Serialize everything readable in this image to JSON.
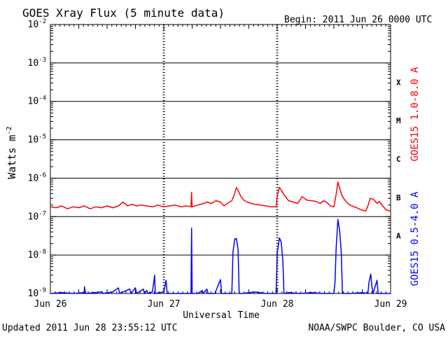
{
  "title": "GOES Xray Flux (5 minute data)",
  "begin": "Begin:  2011 Jun 26 0000 UTC",
  "ylabel": "Watts m",
  "ylabel_exp": "-2",
  "xlabel": "Universal Time",
  "updated": "Updated 2011 Jun 28 23:55:12 UTC",
  "credit": "NOAA/SWPC Boulder, CO USA",
  "chart_data": {
    "type": "line",
    "title": "GOES Xray Flux (5 minute data)",
    "xlabel": "Universal Time",
    "ylabel": "Watts m-2",
    "yscale": "log",
    "ylim_exp": [
      -9,
      -2
    ],
    "ytick_exps": [
      -9,
      -8,
      -7,
      -6,
      -5,
      -4,
      -3,
      -2
    ],
    "xlim_days": [
      0,
      3
    ],
    "xticks": [
      {
        "day": 0,
        "label": "Jun 26"
      },
      {
        "day": 1,
        "label": "Jun 27"
      },
      {
        "day": 2,
        "label": "Jun 28"
      },
      {
        "day": 3,
        "label": "Jun 29"
      }
    ],
    "flare_classes": [
      {
        "label": "A",
        "exp": -8
      },
      {
        "label": "B",
        "exp": -7
      },
      {
        "label": "C",
        "exp": -6
      },
      {
        "label": "M",
        "exp": -5
      },
      {
        "label": "X",
        "exp": -4
      }
    ],
    "grid": true,
    "series": [
      {
        "name": "GOES15 1.0-8.0 A",
        "color": "#ff0000",
        "points": [
          [
            0.0,
            1.8e-07
          ],
          [
            0.05,
            1.7e-07
          ],
          [
            0.1,
            1.9e-07
          ],
          [
            0.15,
            1.6e-07
          ],
          [
            0.2,
            1.8e-07
          ],
          [
            0.25,
            1.7e-07
          ],
          [
            0.3,
            1.9e-07
          ],
          [
            0.35,
            1.6e-07
          ],
          [
            0.4,
            1.8e-07
          ],
          [
            0.45,
            1.7e-07
          ],
          [
            0.5,
            1.9e-07
          ],
          [
            0.55,
            1.7e-07
          ],
          [
            0.6,
            1.9e-07
          ],
          [
            0.64,
            2.4e-07
          ],
          [
            0.68,
            1.9e-07
          ],
          [
            0.72,
            2.1e-07
          ],
          [
            0.76,
            1.9e-07
          ],
          [
            0.8,
            2e-07
          ],
          [
            0.85,
            1.9e-07
          ],
          [
            0.9,
            1.8e-07
          ],
          [
            0.95,
            2e-07
          ],
          [
            1.0,
            1.8e-07
          ],
          [
            1.05,
            1.9e-07
          ],
          [
            1.1,
            2e-07
          ],
          [
            1.15,
            1.8e-07
          ],
          [
            1.2,
            1.9e-07
          ],
          [
            1.24,
            1.8e-07
          ],
          [
            1.245,
            4.3e-07
          ],
          [
            1.25,
            1.8e-07
          ],
          [
            1.3,
            2e-07
          ],
          [
            1.35,
            2.2e-07
          ],
          [
            1.38,
            2.4e-07
          ],
          [
            1.42,
            2.2e-07
          ],
          [
            1.46,
            2.6e-07
          ],
          [
            1.5,
            2.4e-07
          ],
          [
            1.53,
            1.9e-07
          ],
          [
            1.57,
            2.3e-07
          ],
          [
            1.6,
            2.6e-07
          ],
          [
            1.62,
            3.6e-07
          ],
          [
            1.64,
            5.7e-07
          ],
          [
            1.66,
            4.5e-07
          ],
          [
            1.68,
            3.3e-07
          ],
          [
            1.71,
            2.6e-07
          ],
          [
            1.75,
            2.3e-07
          ],
          [
            1.8,
            2.1e-07
          ],
          [
            1.85,
            2e-07
          ],
          [
            1.9,
            1.9e-07
          ],
          [
            1.95,
            1.8e-07
          ],
          [
            1.99,
            1.8e-07
          ],
          [
            2.0,
            3.4e-07
          ],
          [
            2.02,
            5.8e-07
          ],
          [
            2.04,
            4.6e-07
          ],
          [
            2.07,
            3.4e-07
          ],
          [
            2.1,
            2.6e-07
          ],
          [
            2.14,
            2.4e-07
          ],
          [
            2.18,
            2.2e-07
          ],
          [
            2.22,
            3.3e-07
          ],
          [
            2.26,
            2.7e-07
          ],
          [
            2.3,
            2.6e-07
          ],
          [
            2.34,
            2.5e-07
          ],
          [
            2.38,
            2.2e-07
          ],
          [
            2.41,
            2.6e-07
          ],
          [
            2.44,
            2.3e-07
          ],
          [
            2.47,
            1.9e-07
          ],
          [
            2.5,
            1.8e-07
          ],
          [
            2.52,
            3.8e-07
          ],
          [
            2.535,
            8e-07
          ],
          [
            2.55,
            5.6e-07
          ],
          [
            2.57,
            3.6e-07
          ],
          [
            2.6,
            2.6e-07
          ],
          [
            2.63,
            2.1e-07
          ],
          [
            2.66,
            1.9e-07
          ],
          [
            2.7,
            1.7e-07
          ],
          [
            2.74,
            1.5e-07
          ],
          [
            2.78,
            1.4e-07
          ],
          [
            2.8,
            1.9e-07
          ],
          [
            2.82,
            3e-07
          ],
          [
            2.85,
            2.8e-07
          ],
          [
            2.88,
            2.2e-07
          ],
          [
            2.9,
            2.5e-07
          ],
          [
            2.93,
            1.9e-07
          ],
          [
            2.96,
            1.5e-07
          ],
          [
            3.0,
            1.4e-07
          ]
        ]
      },
      {
        "name": "GOES15 0.5-4.0 A",
        "color": "#0000ff",
        "points": [
          [
            0.0,
            1e-09
          ],
          [
            0.1,
            1.05e-09
          ],
          [
            0.2,
            1e-09
          ],
          [
            0.3,
            1.05e-09
          ],
          [
            0.3,
            1.5e-09
          ],
          [
            0.31,
            1e-09
          ],
          [
            0.45,
            1.1e-09
          ],
          [
            0.46,
            1e-09
          ],
          [
            0.55,
            1.1e-09
          ],
          [
            0.6,
            1.4e-09
          ],
          [
            0.61,
            1e-09
          ],
          [
            0.7,
            1.3e-09
          ],
          [
            0.71,
            1e-09
          ],
          [
            0.75,
            1.4e-09
          ],
          [
            0.76,
            1e-09
          ],
          [
            0.82,
            1.3e-09
          ],
          [
            0.83,
            1e-09
          ],
          [
            0.85,
            1.2e-09
          ],
          [
            0.86,
            1e-09
          ],
          [
            0.9,
            1.1e-09
          ],
          [
            0.92,
            3e-09
          ],
          [
            0.925,
            1e-09
          ],
          [
            1.0,
            1.1e-09
          ],
          [
            1.02,
            2.2e-09
          ],
          [
            1.03,
            1e-09
          ],
          [
            1.1,
            1e-09
          ],
          [
            1.2,
            1e-09
          ],
          [
            1.24,
            1e-09
          ],
          [
            1.245,
            5e-08
          ],
          [
            1.25,
            1e-09
          ],
          [
            1.3,
            1e-09
          ],
          [
            1.34,
            1.2e-09
          ],
          [
            1.345,
            1e-09
          ],
          [
            1.38,
            1.3e-09
          ],
          [
            1.39,
            1e-09
          ],
          [
            1.45,
            1e-09
          ],
          [
            1.5,
            2.3e-09
          ],
          [
            1.51,
            1e-09
          ],
          [
            1.6,
            1e-09
          ],
          [
            1.61,
            1.2e-08
          ],
          [
            1.625,
            2.6e-08
          ],
          [
            1.64,
            2.7e-08
          ],
          [
            1.655,
            1.4e-08
          ],
          [
            1.665,
            1e-09
          ],
          [
            1.7,
            1e-09
          ],
          [
            1.8,
            1.1e-09
          ],
          [
            1.9,
            1e-09
          ],
          [
            1.99,
            1e-09
          ],
          [
            2.0,
            1.1e-08
          ],
          [
            2.02,
            2.8e-08
          ],
          [
            2.035,
            2.2e-08
          ],
          [
            2.05,
            7e-09
          ],
          [
            2.06,
            1e-09
          ],
          [
            2.1,
            1.05e-09
          ],
          [
            2.2,
            1e-09
          ],
          [
            2.3,
            1.05e-09
          ],
          [
            2.4,
            1e-09
          ],
          [
            2.5,
            1e-09
          ],
          [
            2.51,
            2e-09
          ],
          [
            2.52,
            1.5e-08
          ],
          [
            2.535,
            8.5e-08
          ],
          [
            2.55,
            4.5e-08
          ],
          [
            2.565,
            1.2e-08
          ],
          [
            2.575,
            1e-09
          ],
          [
            2.65,
            1e-09
          ],
          [
            2.75,
            1.05e-09
          ],
          [
            2.8,
            1e-09
          ],
          [
            2.81,
            2e-09
          ],
          [
            2.825,
            3.2e-09
          ],
          [
            2.835,
            1.5e-09
          ],
          [
            2.845,
            1e-09
          ],
          [
            2.88,
            2.2e-09
          ],
          [
            2.89,
            1e-09
          ],
          [
            2.95,
            1e-09
          ],
          [
            3.0,
            1e-09
          ]
        ]
      }
    ]
  }
}
